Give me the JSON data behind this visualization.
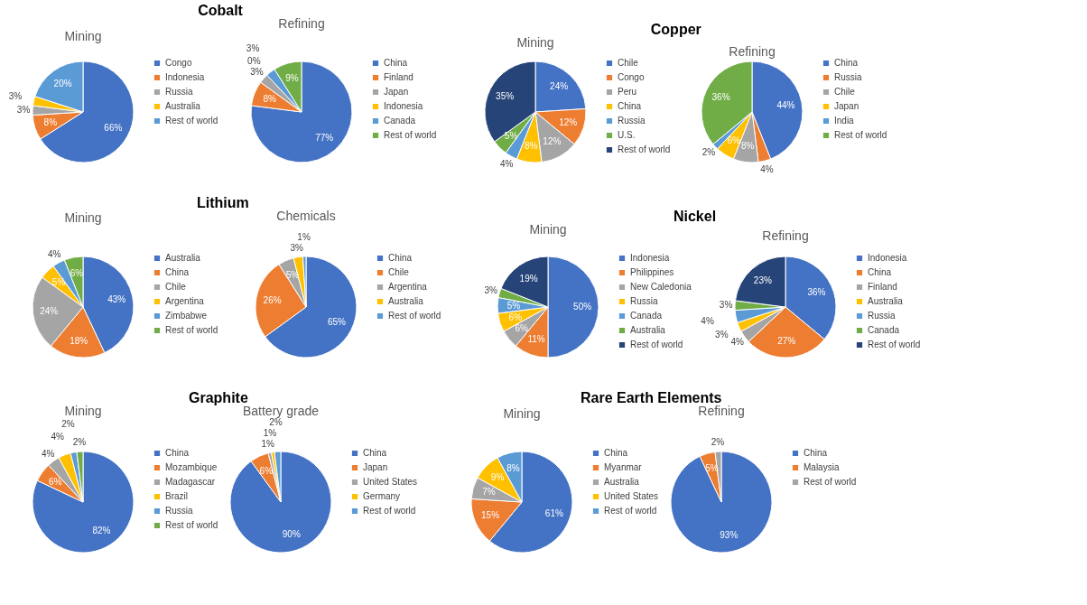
{
  "chart_data": [
    {
      "type": "pie",
      "title": "Mining",
      "annotations": [
        "Cobalt"
      ],
      "categories": [
        "Congo",
        "Indonesia",
        "Russia",
        "Australia",
        "Rest of world"
      ],
      "values": [
        66,
        8,
        3,
        3,
        20
      ],
      "value_labels": [
        "66%",
        "8%",
        "3%",
        "3%",
        "20%"
      ],
      "colors": [
        "#4472c4",
        "#ed7d31",
        "#a5a5a5",
        "#ffc000",
        "#5b9bd5"
      ],
      "legend": "right"
    },
    {
      "type": "pie",
      "title": "Refining",
      "categories": [
        "China",
        "Finland",
        "Japan",
        "Indonesia",
        "Canada",
        "Rest of world"
      ],
      "values": [
        77,
        8,
        3,
        0,
        3,
        9
      ],
      "value_labels": [
        "77%",
        "8%",
        "3%",
        "0%",
        "3%",
        "9%"
      ],
      "colors": [
        "#4472c4",
        "#ed7d31",
        "#a5a5a5",
        "#ffc000",
        "#5b9bd5",
        "#70ad47"
      ],
      "legend": "right"
    },
    {
      "type": "pie",
      "title": "Mining",
      "annotations": [
        "Copper"
      ],
      "categories": [
        "Chile",
        "Congo",
        "Peru",
        "China",
        "Russia",
        "U.S.",
        "Rest of world"
      ],
      "values": [
        24,
        12,
        12,
        8,
        4,
        5,
        35
      ],
      "value_labels": [
        "24%",
        "12%",
        "12%",
        "8%",
        "4%",
        "5%",
        "35%"
      ],
      "colors": [
        "#4472c4",
        "#ed7d31",
        "#a5a5a5",
        "#ffc000",
        "#5b9bd5",
        "#70ad47",
        "#264478"
      ],
      "legend": "right"
    },
    {
      "type": "pie",
      "title": "Refining",
      "categories": [
        "China",
        "Russia",
        "Chile",
        "Japan",
        "India",
        "Rest of world"
      ],
      "values": [
        44,
        4,
        8,
        6,
        2,
        36
      ],
      "value_labels": [
        "44%",
        "4%",
        "8%",
        "6%",
        "2%",
        "36%"
      ],
      "colors": [
        "#4472c4",
        "#ed7d31",
        "#a5a5a5",
        "#ffc000",
        "#5b9bd5",
        "#70ad47"
      ],
      "legend": "right"
    },
    {
      "type": "pie",
      "title": "Mining",
      "annotations": [
        "Lithium"
      ],
      "categories": [
        "Australia",
        "China",
        "Chile",
        "Argentina",
        "Zimbabwe",
        "Rest of world"
      ],
      "values": [
        43,
        18,
        24,
        5,
        4,
        6
      ],
      "value_labels": [
        "43%",
        "18%",
        "24%",
        "5%",
        "4%",
        "6%"
      ],
      "colors": [
        "#4472c4",
        "#ed7d31",
        "#a5a5a5",
        "#ffc000",
        "#5b9bd5",
        "#70ad47"
      ],
      "legend": "right"
    },
    {
      "type": "pie",
      "title": "Chemicals",
      "categories": [
        "China",
        "Chile",
        "Argentina",
        "Australia",
        "Rest of world"
      ],
      "values": [
        65,
        26,
        5,
        3,
        1
      ],
      "value_labels": [
        "65%",
        "26%",
        "5%",
        "3%",
        "1%"
      ],
      "colors": [
        "#4472c4",
        "#ed7d31",
        "#a5a5a5",
        "#ffc000",
        "#5b9bd5"
      ],
      "legend": "right"
    },
    {
      "type": "pie",
      "title": "Mining",
      "annotations": [
        "Nickel"
      ],
      "categories": [
        "Indonesia",
        "Philippines",
        "New Caledonia",
        "Russia",
        "Canada",
        "Australia",
        "Rest of world"
      ],
      "values": [
        50,
        11,
        6,
        6,
        5,
        3,
        19
      ],
      "value_labels": [
        "50%",
        "11%",
        "6%",
        "6%",
        "5%",
        "3%",
        "19%"
      ],
      "colors": [
        "#4472c4",
        "#ed7d31",
        "#a5a5a5",
        "#ffc000",
        "#5b9bd5",
        "#70ad47",
        "#264478"
      ],
      "legend": "right"
    },
    {
      "type": "pie",
      "title": "Refining",
      "categories": [
        "Indonesia",
        "China",
        "Finland",
        "Australia",
        "Russia",
        "Canada",
        "Rest of world"
      ],
      "values": [
        36,
        27,
        4,
        3,
        4,
        3,
        23
      ],
      "value_labels": [
        "36%",
        "27%",
        "4%",
        "3%",
        "4%",
        "3%",
        "23%"
      ],
      "colors": [
        "#4472c4",
        "#ed7d31",
        "#a5a5a5",
        "#ffc000",
        "#5b9bd5",
        "#70ad47",
        "#264478"
      ],
      "legend": "right"
    },
    {
      "type": "pie",
      "title": "Mining",
      "annotations": [
        "Graphite"
      ],
      "categories": [
        "China",
        "Mozambique",
        "Madagascar",
        "Brazil",
        "Russia",
        "Rest of world"
      ],
      "values": [
        82,
        6,
        4,
        4,
        2,
        2
      ],
      "value_labels": [
        "82%",
        "6%",
        "4%",
        "4%",
        "2%",
        "2%"
      ],
      "colors": [
        "#4472c4",
        "#ed7d31",
        "#a5a5a5",
        "#ffc000",
        "#5b9bd5",
        "#70ad47"
      ],
      "legend": "right"
    },
    {
      "type": "pie",
      "title": "Battery grade",
      "categories": [
        "China",
        "Japan",
        "United States",
        "Germany",
        "Rest of world"
      ],
      "values": [
        90,
        6,
        1,
        1,
        2
      ],
      "value_labels": [
        "90%",
        "6%",
        "1%",
        "1%",
        "2%"
      ],
      "colors": [
        "#4472c4",
        "#ed7d31",
        "#a5a5a5",
        "#ffc000",
        "#5b9bd5"
      ],
      "legend": "right"
    },
    {
      "type": "pie",
      "title": "Mining",
      "annotations": [
        "Rare Earth Elements"
      ],
      "categories": [
        "China",
        "Myanmar",
        "Australia",
        "United States",
        "Rest of world"
      ],
      "values": [
        61,
        15,
        7,
        9,
        8
      ],
      "value_labels": [
        "61%",
        "15%",
        "7%",
        "9%",
        "8%"
      ],
      "colors": [
        "#4472c4",
        "#ed7d31",
        "#a5a5a5",
        "#ffc000",
        "#5b9bd5"
      ],
      "legend": "right"
    },
    {
      "type": "pie",
      "title": "Refining",
      "categories": [
        "China",
        "Malaysia",
        "Rest of world"
      ],
      "values": [
        93,
        5,
        2
      ],
      "value_labels": [
        "93%",
        "5%",
        "2%"
      ],
      "colors": [
        "#4472c4",
        "#ed7d31",
        "#a5a5a5"
      ],
      "legend": "right"
    }
  ]
}
